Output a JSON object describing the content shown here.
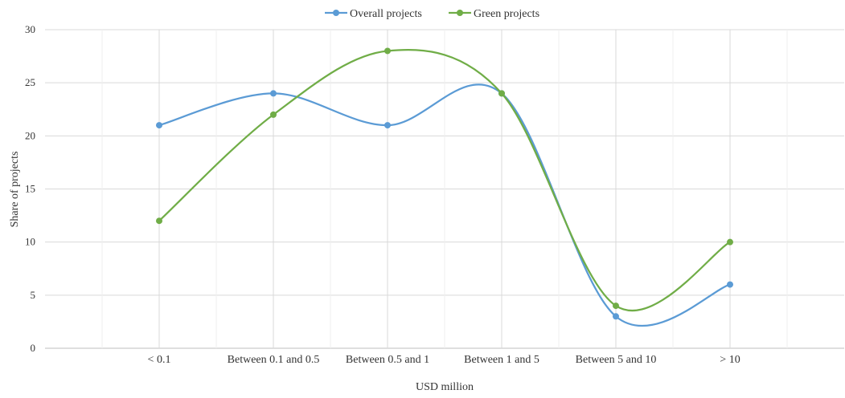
{
  "chart_data": {
    "type": "line",
    "title": "",
    "xlabel": "USD million",
    "ylabel": "Share of projects",
    "categories": [
      "< 0.1",
      "Between 0.1 and 0.5",
      "Between 0.5 and 1",
      "Between 1 and 5",
      "Between 5 and 10",
      "> 10"
    ],
    "ylim": [
      0,
      30
    ],
    "yticks": [
      0,
      5,
      10,
      15,
      20,
      25,
      30
    ],
    "grid": true,
    "legend_position": "top-center",
    "smooth": true,
    "series": [
      {
        "name": "Overall projects",
        "color": "#5b9bd5",
        "values": [
          21,
          24,
          21,
          24,
          3,
          6
        ]
      },
      {
        "name": "Green projects",
        "color": "#70ad47",
        "values": [
          12,
          22,
          28,
          24,
          4,
          10
        ]
      }
    ]
  }
}
